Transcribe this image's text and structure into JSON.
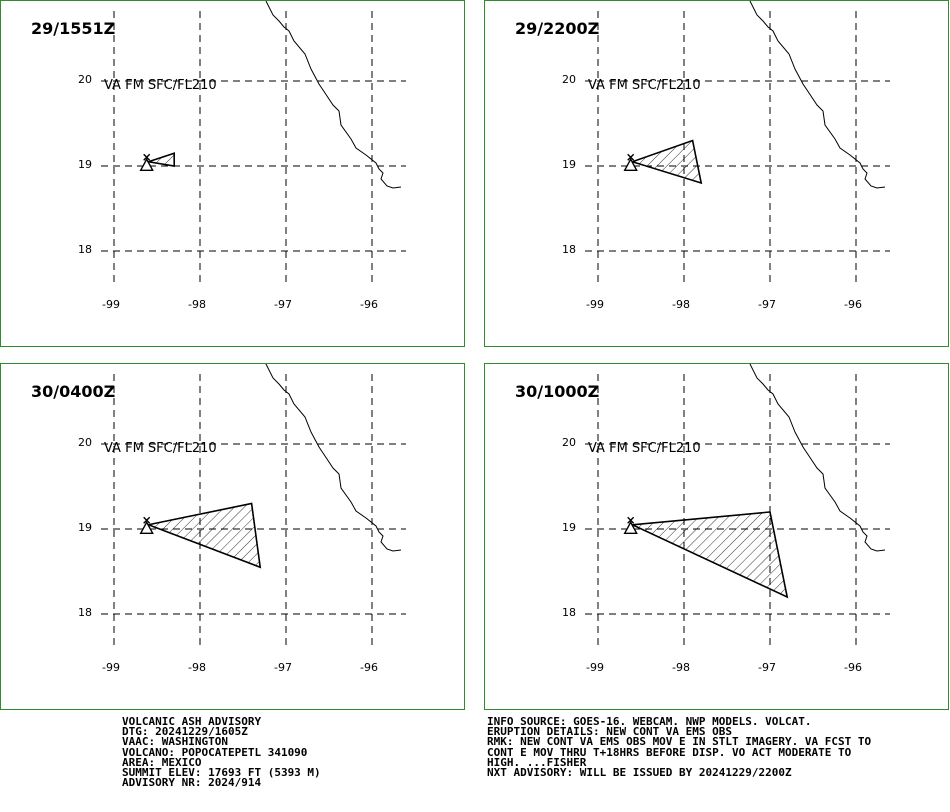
{
  "panels": [
    {
      "title": "29/1551Z",
      "label": "VA FM SFC/FL210",
      "polygon": [
        [
          -98.6,
          19.05
        ],
        [
          -98.3,
          19.15
        ],
        [
          -98.3,
          19.0
        ]
      ]
    },
    {
      "title": "29/2200Z",
      "label": "VA FM SFC/FL210",
      "polygon": [
        [
          -98.6,
          19.05
        ],
        [
          -97.9,
          19.3
        ],
        [
          -97.8,
          18.8
        ]
      ]
    },
    {
      "title": "30/0400Z",
      "label": "VA FM SFC/FL210",
      "polygon": [
        [
          -98.6,
          19.05
        ],
        [
          -97.4,
          19.3
        ],
        [
          -97.3,
          18.55
        ]
      ]
    },
    {
      "title": "30/1000Z",
      "label": "VA FM SFC/FL210",
      "polygon": [
        [
          -98.6,
          19.05
        ],
        [
          -97.0,
          19.2
        ],
        [
          -96.8,
          18.2
        ]
      ]
    }
  ],
  "axes": {
    "y_ticks": [
      "20",
      "19",
      "18"
    ],
    "x_ticks": [
      "-99",
      "-98",
      "-97",
      "-96"
    ]
  },
  "advisory_left": [
    "VOLCANIC ASH ADVISORY",
    "DTG: 20241229/1605Z",
    "VAAC: WASHINGTON",
    "VOLCANO: POPOCATEPETL 341090",
    "AREA: MEXICO",
    "SUMMIT ELEV: 17693 FT (5393 M)",
    "ADVISORY NR: 2024/914"
  ],
  "advisory_right": [
    "INFO SOURCE: GOES-16. WEBCAM. NWP MODELS. VOLCAT.",
    "ERUPTION DETAILS: NEW CONT VA EMS OBS",
    "RMK: NEW CONT VA EMS OBS MOV E IN STLT IMAGERY. VA FCST TO",
    "CONT E MOV THRU T+18HRS BEFORE DISP. VO ACT MODERATE TO",
    "HIGH. ...FISHER",
    "NXT ADVISORY: WILL BE ISSUED BY 20241229/2200Z"
  ],
  "colors": {
    "border": "#2e8b2e",
    "grid": "#000000",
    "ash": "#000000"
  }
}
